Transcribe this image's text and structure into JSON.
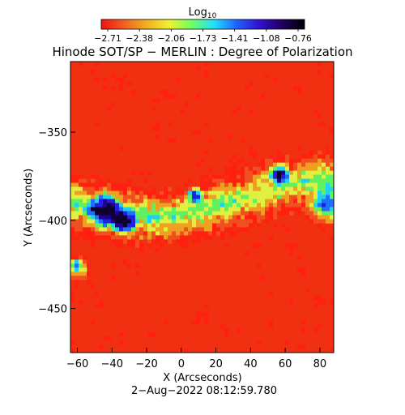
{
  "colorbar": {
    "label_main": "Log",
    "label_sub": "10",
    "ticks": [
      "−2.71",
      "−2.38",
      "−2.06",
      "−1.73",
      "−1.41",
      "−1.08",
      "−0.76"
    ],
    "stops": [
      "#f01010",
      "#f06020",
      "#f0b020",
      "#f0f030",
      "#70ff60",
      "#20e0ff",
      "#2060ff",
      "#3010d0",
      "#200060",
      "#000000"
    ]
  },
  "chart_data": {
    "type": "heatmap",
    "title": "Hinode SOT/SP − MERLIN : Degree of Polarization",
    "xlabel": "X (Arcseconds)",
    "ylabel": "Y (Arcseconds)",
    "xlim": [
      -64,
      88
    ],
    "ylim": [
      -475,
      -310
    ],
    "x_ticks": [
      -60,
      -40,
      -20,
      0,
      20,
      40,
      60,
      80
    ],
    "x_tick_labels": [
      "−60",
      "−40",
      "−20",
      "0",
      "20",
      "40",
      "60",
      "80"
    ],
    "y_ticks": [
      -350,
      -400,
      -450
    ],
    "y_tick_labels": [
      "−350",
      "−400",
      "−450"
    ],
    "value_range": [
      -2.71,
      -0.76
    ],
    "value_scale": "log10"
  },
  "footer": {
    "timestamp": "2−Aug−2022 08:12:59.780"
  }
}
